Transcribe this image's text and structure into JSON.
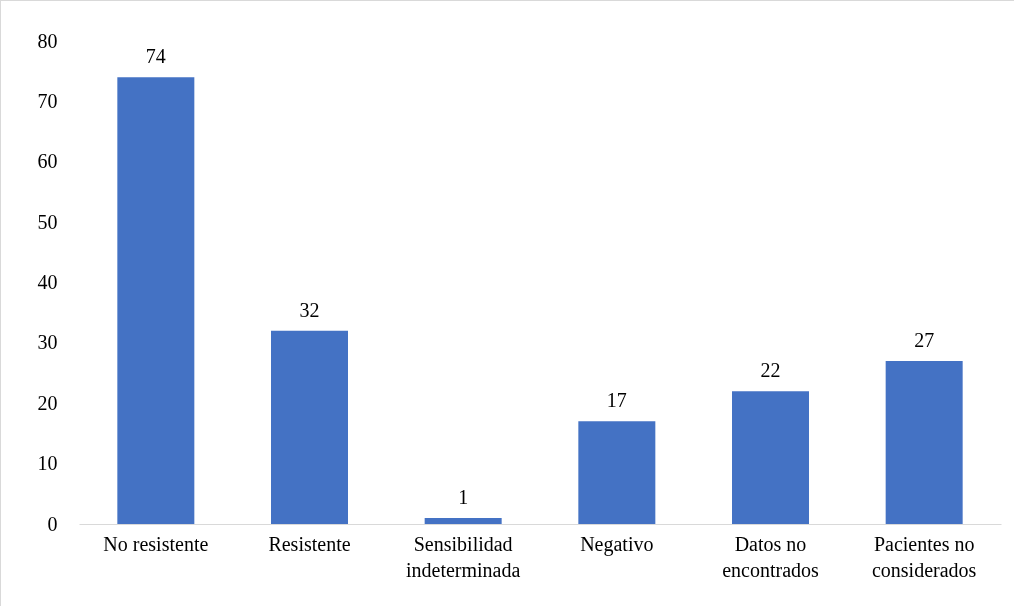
{
  "chart_data": {
    "type": "bar",
    "categories": [
      "No resistente",
      "Resistente",
      "Sensibilidad indeterminada",
      "Negativo",
      "Datos no encontrados",
      "Pacientes no considerados"
    ],
    "values": [
      74,
      32,
      1,
      17,
      22,
      27
    ],
    "color": "#4472c4",
    "ylim": [
      0,
      80
    ],
    "yticks": [
      0,
      10,
      20,
      30,
      40,
      50,
      60,
      70,
      80
    ],
    "grid": false,
    "data_labels": true
  }
}
